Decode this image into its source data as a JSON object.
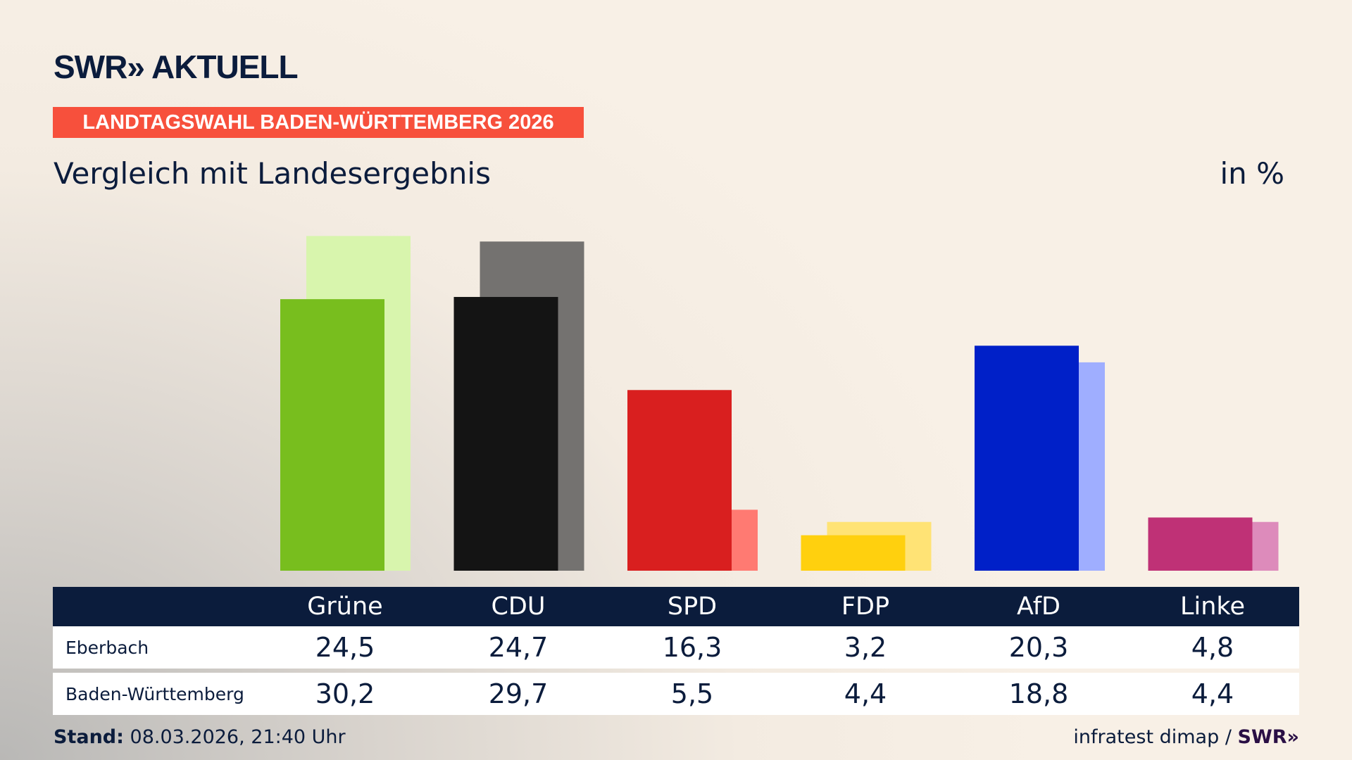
{
  "header": {
    "logo": "SWR» AKTUELL",
    "band": "LANDTAGSWAHL BADEN-WÜRTTEMBERG 2026",
    "subtitle": "Vergleich mit Landesergebnis",
    "unit": "in %"
  },
  "chart_data": {
    "type": "bar",
    "categories": [
      "Grüne",
      "CDU",
      "SPD",
      "FDP",
      "AfD",
      "Linke"
    ],
    "series": [
      {
        "name": "Eberbach",
        "values": [
          24.5,
          24.7,
          16.3,
          3.2,
          20.3,
          4.8
        ],
        "colors": [
          "#78be1e",
          "#141414",
          "#d91f1f",
          "#ffd00e",
          "#0020c8",
          "#bf3176"
        ]
      },
      {
        "name": "Baden-Württemberg",
        "values": [
          30.2,
          29.7,
          5.5,
          4.4,
          18.8,
          4.4
        ],
        "colors": [
          "#d8f5ad",
          "#747270",
          "#ff7a72",
          "#ffe375",
          "#9faeff",
          "#dd8bbb"
        ]
      }
    ],
    "ylim": [
      0,
      31
    ],
    "grid": false
  },
  "table": {
    "headers": [
      "Grüne",
      "CDU",
      "SPD",
      "FDP",
      "AfD",
      "Linke"
    ],
    "rows": [
      {
        "label": "Eberbach",
        "values": [
          "24,5",
          "24,7",
          "16,3",
          "3,2",
          "20,3",
          "4,8"
        ]
      },
      {
        "label": "Baden-Württemberg",
        "values": [
          "30,2",
          "29,7",
          "5,5",
          "4,4",
          "18,8",
          "4,4"
        ]
      }
    ]
  },
  "footer": {
    "stand_label": "Stand:",
    "stand_value": "08.03.2026, 21:40 Uhr",
    "source": "infratest dimap /",
    "source_logo": "SWR»"
  }
}
